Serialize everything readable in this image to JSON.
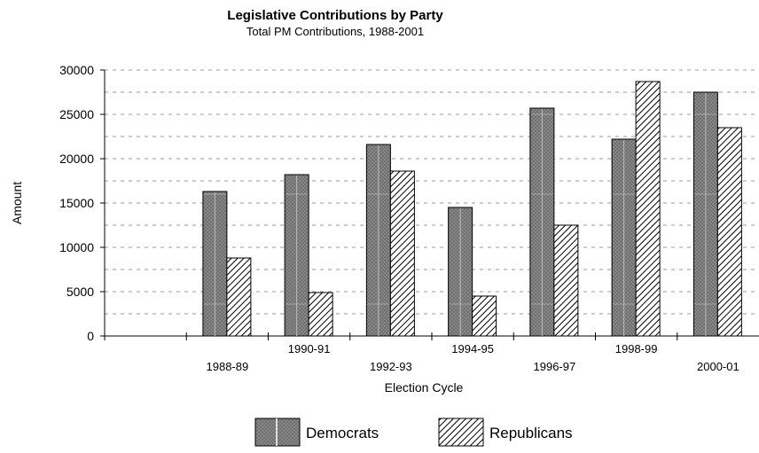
{
  "colors": {
    "democrat_fill": "#8c8c8c",
    "republican_stripe": "#000000",
    "grid": "#999999",
    "axis": "#000000"
  },
  "chart_data": {
    "type": "bar",
    "title": "Legislative Contributions by Party",
    "subtitle": "Total PM Contributions, 1988-2001",
    "xlabel": "Election Cycle",
    "ylabel": "Amount",
    "ylim": [
      0,
      30000
    ],
    "yticks": [
      0,
      5000,
      10000,
      15000,
      20000,
      25000,
      30000
    ],
    "grid": true,
    "legend_position": "bottom",
    "categories": [
      "",
      "1988-89",
      "1990-91",
      "1992-93",
      "1994-95",
      "1996-97",
      "1998-99",
      "2000-01"
    ],
    "series": [
      {
        "name": "Democrats",
        "pattern": "crosshatch-gray",
        "values": [
          null,
          16300,
          18200,
          21600,
          14500,
          25700,
          22200,
          27500
        ]
      },
      {
        "name": "Republicans",
        "pattern": "diagonal-hatch",
        "values": [
          null,
          8800,
          4900,
          18600,
          4500,
          12500,
          28700,
          23500
        ]
      }
    ]
  }
}
